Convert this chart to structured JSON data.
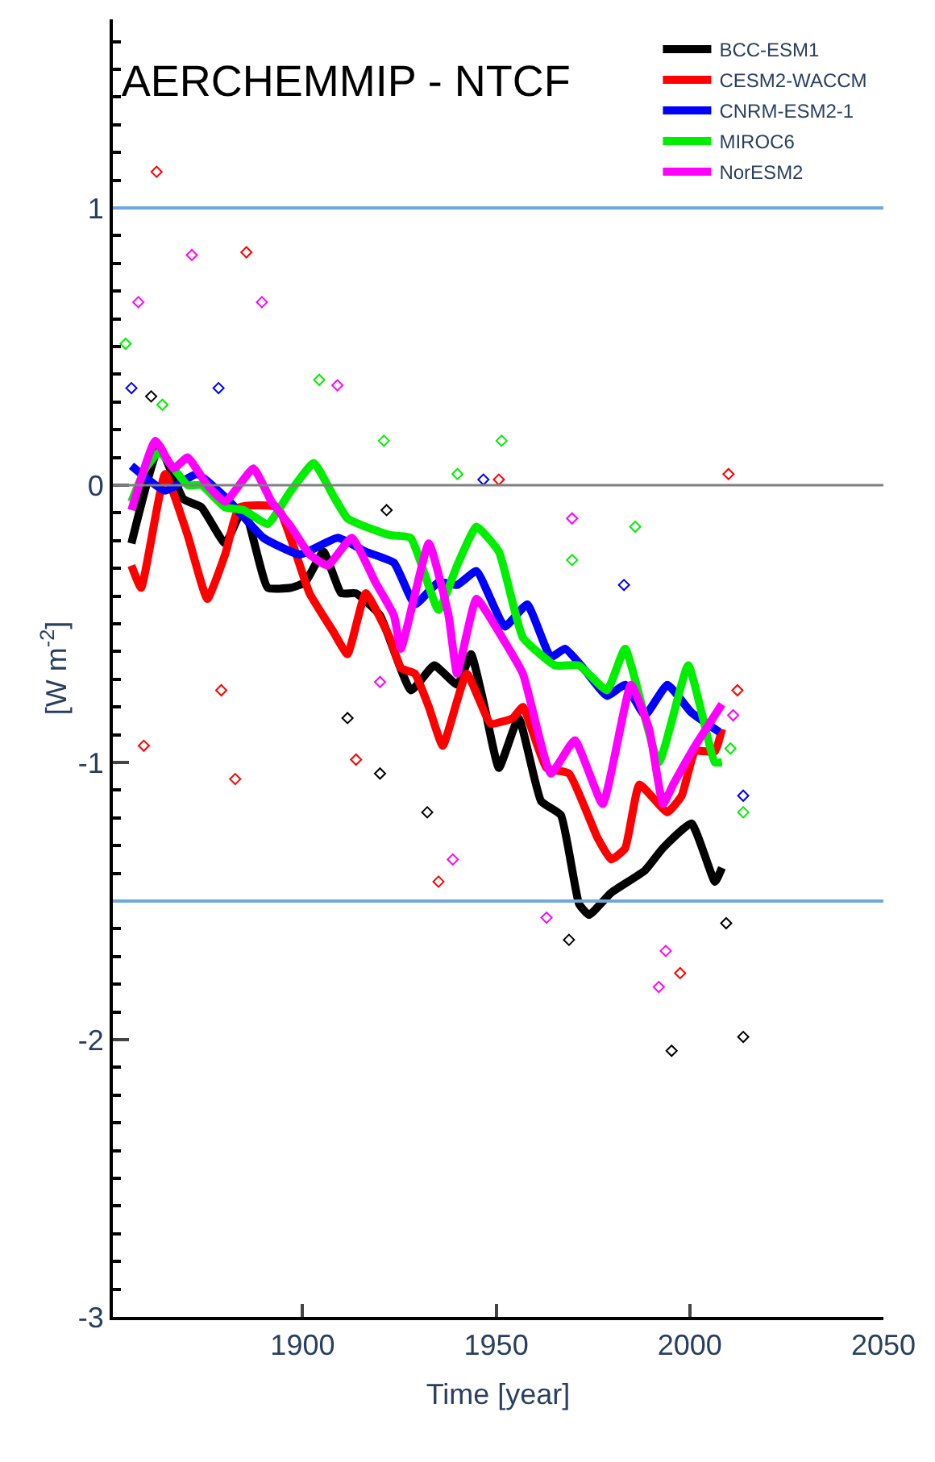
{
  "chart_data": {
    "type": "line",
    "title": "AERCHEMMIP - NTCF",
    "xlabel": "Time [year]",
    "ylabel": "[W m$^{-2}$]",
    "xlim": [
      1851,
      2050
    ],
    "xticks": [
      1900,
      1950,
      2000,
      2050
    ],
    "ylim": [
      -3,
      1.68
    ],
    "yticks": [
      1,
      0,
      -1,
      -2,
      -3
    ],
    "legend": "top right",
    "ref_lines": [
      {
        "axis": "y",
        "value": 1,
        "color": "#6fa8dc"
      },
      {
        "axis": "y",
        "value": -1.5,
        "color": "#6fa8dc"
      },
      {
        "axis": "y",
        "value": 0,
        "color": "#808080"
      }
    ],
    "series": [
      {
        "name": "BCC-ESM1",
        "color": "#000000",
        "x": [
          1855.8,
          1863,
          1869.2,
          1873.9,
          1880,
          1884.8,
          1891,
          1897,
          1900.7,
          1905.4,
          1910,
          1913.8,
          1920,
          1928,
          1934,
          1940,
          1943.5,
          1947,
          1950.7,
          1955.8,
          1961.6,
          1966.7,
          1971.4,
          1974,
          1979.7,
          1988.4,
          1993,
          2000.4,
          2006.5,
          2008.3
        ],
        "values": [
          -0.21,
          0.14,
          -0.05,
          -0.08,
          -0.21,
          -0.08,
          -0.37,
          -0.37,
          -0.35,
          -0.24,
          -0.39,
          -0.39,
          -0.47,
          -0.74,
          -0.65,
          -0.72,
          -0.61,
          -0.8,
          -1.02,
          -0.84,
          -1.14,
          -1.19,
          -1.51,
          -1.55,
          -1.47,
          -1.39,
          -1.31,
          -1.22,
          -1.43,
          -1.38
        ]
      },
      {
        "name": "CESM2-WACCM",
        "color": "#ff0000",
        "x": [
          1855.8,
          1858.3,
          1864.5,
          1870.3,
          1875.4,
          1880,
          1883.7,
          1893.5,
          1901.8,
          1908,
          1911.6,
          1916.3,
          1922.5,
          1925.4,
          1929,
          1932.6,
          1936.2,
          1942.4,
          1948.6,
          1954.3,
          1956.9,
          1963,
          1968.8,
          1976.1,
          1979.7,
          1983.3,
          1987,
          1994.2,
          1997.9,
          2001.4,
          2006.5,
          2008.3
        ],
        "values": [
          -0.29,
          -0.37,
          0.04,
          -0.18,
          -0.41,
          -0.25,
          -0.08,
          -0.08,
          -0.39,
          -0.53,
          -0.61,
          -0.39,
          -0.55,
          -0.66,
          -0.68,
          -0.8,
          -0.94,
          -0.68,
          -0.86,
          -0.84,
          -0.8,
          -1.02,
          -1.04,
          -1.27,
          -1.35,
          -1.31,
          -1.08,
          -1.18,
          -1.12,
          -0.96,
          -0.96,
          -0.88
        ]
      },
      {
        "name": "CNRM-ESM2-1",
        "color": "#0000ff",
        "x": [
          1855.8,
          1864.5,
          1872.8,
          1881.2,
          1889.9,
          1899.3,
          1909.1,
          1916.3,
          1923.6,
          1929,
          1935.1,
          1939.9,
          1944.9,
          1952.2,
          1958,
          1964.1,
          1967.8,
          1972.5,
          1978.6,
          1983.3,
          1988.4,
          1994.2,
          2000.4,
          2007.6
        ],
        "values": [
          0.07,
          -0.02,
          0.04,
          -0.06,
          -0.19,
          -0.25,
          -0.19,
          -0.24,
          -0.28,
          -0.43,
          -0.35,
          -0.36,
          -0.31,
          -0.51,
          -0.43,
          -0.62,
          -0.59,
          -0.66,
          -0.76,
          -0.72,
          -0.83,
          -0.72,
          -0.82,
          -0.89
        ]
      },
      {
        "name": "MIROC6",
        "color": "#00ee00",
        "x": [
          1855.8,
          1859.4,
          1863,
          1870.3,
          1873.9,
          1880,
          1884.8,
          1891,
          1897,
          1902.9,
          1908,
          1911.6,
          1916.3,
          1922.5,
          1927.9,
          1935.1,
          1939.9,
          1944.9,
          1950.7,
          1956.9,
          1965.2,
          1971.4,
          1978.6,
          1983.3,
          1992,
          1999.6,
          2006.5,
          2008.3
        ],
        "values": [
          -0.06,
          0.06,
          0.12,
          0.0,
          0.0,
          -0.08,
          -0.09,
          -0.14,
          -0.02,
          0.08,
          -0.04,
          -0.12,
          -0.15,
          -0.18,
          -0.19,
          -0.45,
          -0.29,
          -0.15,
          -0.24,
          -0.55,
          -0.65,
          -0.65,
          -0.74,
          -0.59,
          -1.0,
          -0.65,
          -1.0,
          -1.0
        ]
      },
      {
        "name": "NorESM2",
        "color": "#ff00ff",
        "x": [
          1855.8,
          1862,
          1866.7,
          1870.3,
          1875.4,
          1880,
          1887.3,
          1892,
          1897,
          1901.8,
          1906.5,
          1912.7,
          1918.8,
          1923.6,
          1925.4,
          1932.6,
          1937.7,
          1939.9,
          1944.9,
          1950.7,
          1956.9,
          1964.1,
          1970.3,
          1977.5,
          1984.8,
          1989.5,
          1993.1,
          1995.7,
          2001.4,
          2008.3
        ],
        "values": [
          -0.09,
          0.16,
          0.06,
          0.1,
          0.0,
          -0.06,
          0.06,
          -0.06,
          -0.15,
          -0.25,
          -0.29,
          -0.19,
          -0.35,
          -0.47,
          -0.59,
          -0.21,
          -0.47,
          -0.68,
          -0.41,
          -0.53,
          -0.68,
          -1.04,
          -0.92,
          -1.15,
          -0.72,
          -0.88,
          -1.15,
          -1.08,
          -0.94,
          -0.79
        ]
      },
      {
        "type": "scatter",
        "marker": "diamond",
        "color": "#000000",
        "x": [
          1860.9,
          1911.6,
          1920,
          1921.7,
          1932.2,
          1968.8,
          1995.3,
          2009.4,
          2013.8
        ],
        "values": [
          0.32,
          -0.84,
          -1.04,
          -0.09,
          -1.18,
          -1.64,
          -2.04,
          -1.58,
          -1.99
        ]
      },
      {
        "type": "scatter",
        "marker": "diamond",
        "color": "#ff0000",
        "x": [
          1862.3,
          1885.5,
          1859,
          1879,
          1882.6,
          1913.8,
          1935.1,
          1950.7,
          1997.5,
          2010,
          2012.3
        ],
        "values": [
          1.13,
          0.84,
          -0.94,
          -0.74,
          -1.06,
          -0.99,
          -1.43,
          0.02,
          -1.76,
          0.04,
          -0.74
        ]
      },
      {
        "type": "scatter",
        "marker": "diamond",
        "color": "#0000ff",
        "x": [
          1855.8,
          1878.3,
          1946.7,
          1983,
          2013.8
        ],
        "values": [
          0.35,
          0.35,
          0.02,
          -0.36,
          -1.12
        ]
      },
      {
        "type": "scatter",
        "marker": "diamond",
        "color": "#00ee00",
        "x": [
          1854.3,
          1863.8,
          1904.3,
          1921,
          1940,
          1951.4,
          1969.6,
          1985.9,
          2010.5,
          2013.8
        ],
        "values": [
          0.51,
          0.29,
          0.38,
          0.16,
          0.04,
          0.16,
          -0.27,
          -0.15,
          -0.95,
          -1.18
        ]
      },
      {
        "type": "scatter",
        "marker": "diamond",
        "color": "#ff00ff",
        "x": [
          1857.6,
          1871.4,
          1889.5,
          1909,
          1920,
          1938.8,
          1963,
          1969.6,
          1992,
          1993.8,
          2011.2
        ],
        "values": [
          0.66,
          0.83,
          0.66,
          0.36,
          -0.71,
          -1.35,
          -1.56,
          -0.12,
          -1.81,
          -1.68,
          -0.83
        ]
      }
    ]
  }
}
